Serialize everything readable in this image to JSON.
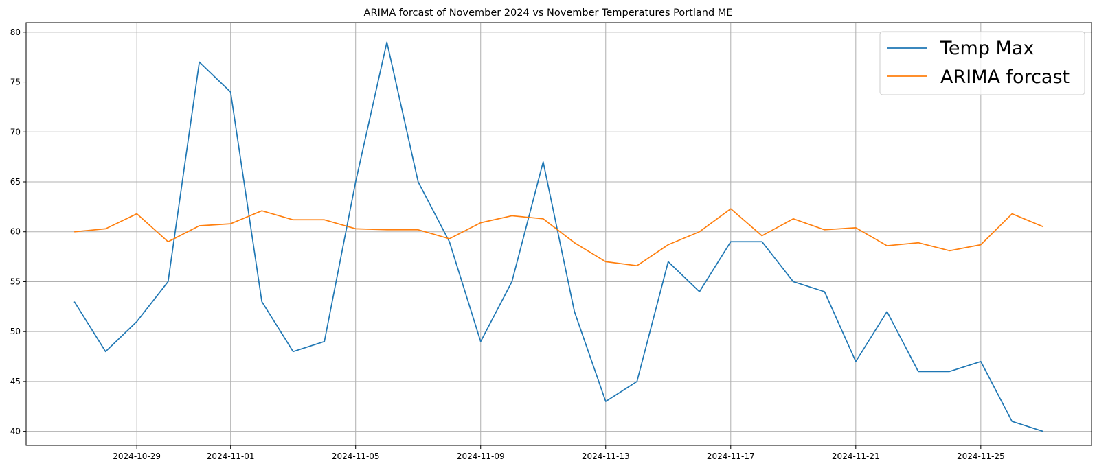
{
  "chart_data": {
    "type": "line",
    "title": "ARIMA forcast of November 2024 vs November Temperatures Portland ME",
    "xlabel": "",
    "ylabel": "",
    "x": [
      "2024-10-27",
      "2024-10-28",
      "2024-10-29",
      "2024-10-30",
      "2024-10-31",
      "2024-11-01",
      "2024-11-02",
      "2024-11-03",
      "2024-11-04",
      "2024-11-05",
      "2024-11-06",
      "2024-11-07",
      "2024-11-08",
      "2024-11-09",
      "2024-11-10",
      "2024-11-11",
      "2024-11-12",
      "2024-11-13",
      "2024-11-14",
      "2024-11-15",
      "2024-11-16",
      "2024-11-17",
      "2024-11-18",
      "2024-11-19",
      "2024-11-20",
      "2024-11-21",
      "2024-11-22",
      "2024-11-23",
      "2024-11-24",
      "2024-11-25",
      "2024-11-26",
      "2024-11-27"
    ],
    "x_ticks": [
      "2024-10-29",
      "2024-11-01",
      "2024-11-05",
      "2024-11-09",
      "2024-11-13",
      "2024-11-17",
      "2024-11-21",
      "2024-11-25"
    ],
    "y_ticks": [
      40,
      45,
      50,
      55,
      60,
      65,
      70,
      75,
      80
    ],
    "ylim": [
      38.6,
      80.95
    ],
    "xlim": [
      "2024-10-25 11:00",
      "2024-11-28 13:00"
    ],
    "grid": true,
    "legend_position": "top-right",
    "series": [
      {
        "name": "Temp Max",
        "color": "#1f77b4",
        "values": [
          53,
          48,
          51,
          55,
          77,
          74,
          53,
          48,
          49,
          65,
          79,
          65,
          59,
          49,
          55,
          67,
          52,
          43,
          45,
          57,
          54,
          59,
          59,
          55,
          54,
          47,
          52,
          46,
          46,
          47,
          41,
          40
        ]
      },
      {
        "name": "ARIMA forcast",
        "color": "#ff7f0e",
        "values": [
          60.0,
          60.3,
          61.8,
          59.0,
          60.6,
          60.8,
          62.1,
          61.2,
          61.2,
          60.3,
          60.2,
          60.2,
          59.3,
          60.9,
          61.6,
          61.3,
          58.9,
          57.0,
          56.6,
          58.7,
          60.0,
          62.3,
          59.6,
          61.3,
          60.2,
          60.4,
          58.6,
          58.9,
          58.1,
          58.7,
          61.8,
          60.5
        ]
      }
    ]
  }
}
